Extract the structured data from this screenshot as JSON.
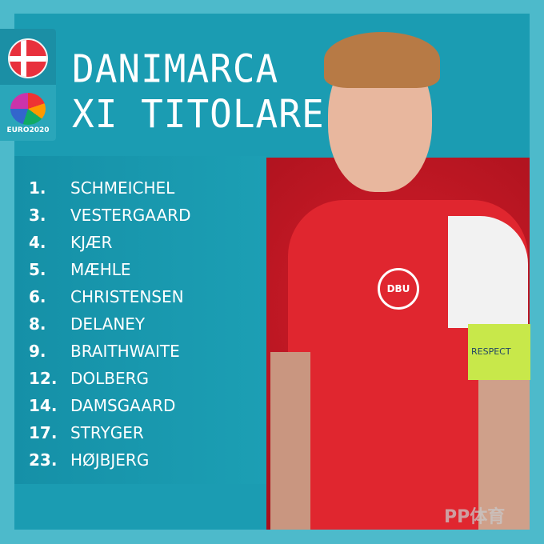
{
  "badge": {
    "flag": "denmark-flag",
    "tournament_logo": "EURO2020"
  },
  "title": {
    "line1": "DANIMARCA",
    "line2": "XI TITOLARE"
  },
  "players": [
    {
      "number": "1.",
      "name": "SCHMEICHEL"
    },
    {
      "number": "3.",
      "name": "VESTERGAARD"
    },
    {
      "number": "4.",
      "name": "KJÆR"
    },
    {
      "number": "5.",
      "name": "MÆHLE"
    },
    {
      "number": "6.",
      "name": "CHRISTENSEN"
    },
    {
      "number": "8.",
      "name": "DELANEY"
    },
    {
      "number": "9.",
      "name": "BRAITHWAITE"
    },
    {
      "number": "12.",
      "name": "DOLBERG"
    },
    {
      "number": "14.",
      "name": "DAMSGAARD"
    },
    {
      "number": "17.",
      "name": "STRYGER"
    },
    {
      "number": "23.",
      "name": "HØJBJERG"
    }
  ],
  "photo": {
    "crest": "DBU",
    "armband": "RESPECT"
  },
  "watermark": "PP体育",
  "colors": {
    "background": "#4dbacb",
    "panel": "#1b9cb2",
    "photo_bg": "#c4161f"
  }
}
